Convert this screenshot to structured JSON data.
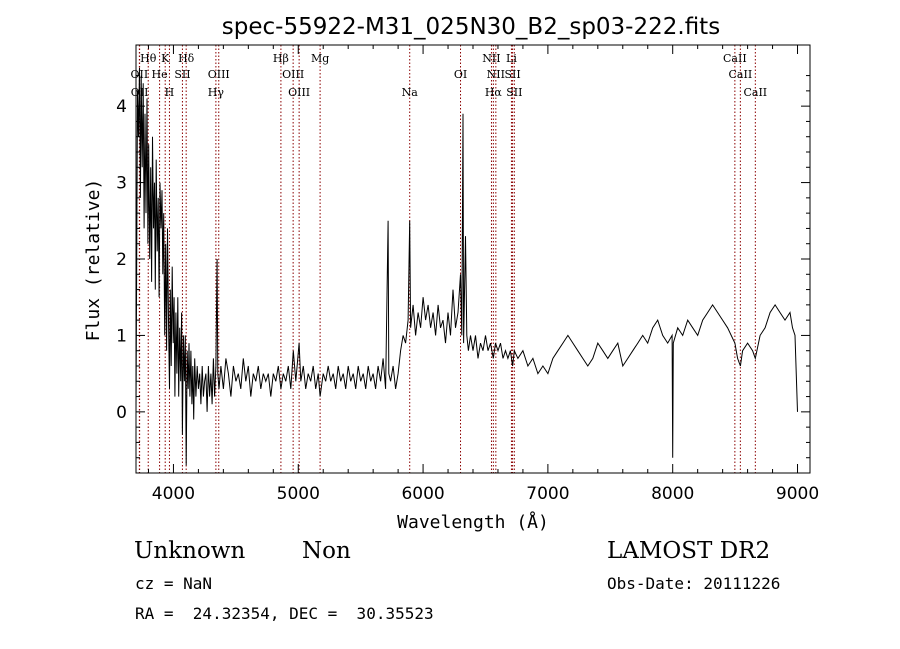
{
  "chart_data": {
    "type": "line",
    "title": "spec-55922-M31_025N30_B2_sp03-222.fits",
    "xlabel": "Wavelength (Å)",
    "ylabel": "Flux (relative)",
    "xlim": [
      3700,
      9100
    ],
    "ylim": [
      -0.8,
      4.8
    ],
    "xticks": [
      4000,
      5000,
      6000,
      7000,
      8000,
      9000
    ],
    "yticks": [
      0,
      1,
      2,
      3,
      4
    ],
    "grid": false,
    "line_color": "#000000",
    "marker_color": "#8b0000",
    "series": [
      {
        "points": [
          [
            3700,
            0.0
          ],
          [
            3712,
            4.2
          ],
          [
            3720,
            3.6
          ],
          [
            3728,
            4.5
          ],
          [
            3735,
            2.8
          ],
          [
            3742,
            4.4
          ],
          [
            3750,
            3.2
          ],
          [
            3758,
            4.3
          ],
          [
            3765,
            2.4
          ],
          [
            3772,
            3.9
          ],
          [
            3780,
            2.6
          ],
          [
            3788,
            4.1
          ],
          [
            3795,
            2.2
          ],
          [
            3802,
            3.5
          ],
          [
            3810,
            2.0
          ],
          [
            3818,
            3.2
          ],
          [
            3825,
            1.7
          ],
          [
            3832,
            3.6
          ],
          [
            3840,
            2.4
          ],
          [
            3848,
            3.0
          ],
          [
            3855,
            1.6
          ],
          [
            3862,
            3.3
          ],
          [
            3870,
            2.1
          ],
          [
            3878,
            2.8
          ],
          [
            3885,
            1.5
          ],
          [
            3892,
            3.0
          ],
          [
            3900,
            2.4
          ],
          [
            3908,
            2.9
          ],
          [
            3915,
            1.8
          ],
          [
            3922,
            2.6
          ],
          [
            3930,
            1.0
          ],
          [
            3938,
            2.2
          ],
          [
            3945,
            0.8
          ],
          [
            3952,
            2.4
          ],
          [
            3960,
            1.2
          ],
          [
            3968,
            0.3
          ],
          [
            3975,
            1.6
          ],
          [
            3982,
            0.6
          ],
          [
            3990,
            1.9
          ],
          [
            3998,
            0.9
          ],
          [
            4005,
            1.5
          ],
          [
            4012,
            0.2
          ],
          [
            4020,
            1.3
          ],
          [
            4028,
            0.5
          ],
          [
            4035,
            1.5
          ],
          [
            4042,
            0.2
          ],
          [
            4050,
            1.1
          ],
          [
            4058,
            0.4
          ],
          [
            4065,
            1.3
          ],
          [
            4072,
            -0.3
          ],
          [
            4080,
            1.0
          ],
          [
            4088,
            0.4
          ],
          [
            4095,
            1.0
          ],
          [
            4102,
            -0.7
          ],
          [
            4110,
            0.8
          ],
          [
            4118,
            0.3
          ],
          [
            4125,
            0.9
          ],
          [
            4132,
            0.2
          ],
          [
            4140,
            0.8
          ],
          [
            4148,
            0.1
          ],
          [
            4155,
            0.6
          ],
          [
            4162,
            -0.1
          ],
          [
            4170,
            0.7
          ],
          [
            4180,
            0.2
          ],
          [
            4190,
            0.6
          ],
          [
            4200,
            0.3
          ],
          [
            4210,
            0.5
          ],
          [
            4220,
            0.1
          ],
          [
            4230,
            0.6
          ],
          [
            4240,
            0.2
          ],
          [
            4250,
            0.4
          ],
          [
            4260,
            0.5
          ],
          [
            4270,
            0.0
          ],
          [
            4280,
            0.6
          ],
          [
            4290,
            0.2
          ],
          [
            4300,
            0.5
          ],
          [
            4310,
            0.1
          ],
          [
            4320,
            0.7
          ],
          [
            4330,
            0.2
          ],
          [
            4340,
            0.6
          ],
          [
            4350,
            2.0
          ],
          [
            4355,
            0.5
          ],
          [
            4365,
            0.3
          ],
          [
            4380,
            0.6
          ],
          [
            4400,
            0.3
          ],
          [
            4420,
            0.7
          ],
          [
            4440,
            0.5
          ],
          [
            4460,
            0.2
          ],
          [
            4480,
            0.6
          ],
          [
            4500,
            0.4
          ],
          [
            4520,
            0.5
          ],
          [
            4540,
            0.3
          ],
          [
            4560,
            0.7
          ],
          [
            4580,
            0.4
          ],
          [
            4600,
            0.6
          ],
          [
            4620,
            0.2
          ],
          [
            4640,
            0.5
          ],
          [
            4660,
            0.4
          ],
          [
            4680,
            0.6
          ],
          [
            4700,
            0.3
          ],
          [
            4720,
            0.5
          ],
          [
            4740,
            0.4
          ],
          [
            4760,
            0.5
          ],
          [
            4780,
            0.2
          ],
          [
            4800,
            0.5
          ],
          [
            4820,
            0.4
          ],
          [
            4840,
            0.6
          ],
          [
            4861,
            0.3
          ],
          [
            4880,
            0.5
          ],
          [
            4900,
            0.4
          ],
          [
            4920,
            0.6
          ],
          [
            4940,
            0.3
          ],
          [
            4960,
            0.8
          ],
          [
            4980,
            0.4
          ],
          [
            5007,
            0.9
          ],
          [
            5020,
            0.4
          ],
          [
            5040,
            0.6
          ],
          [
            5060,
            0.3
          ],
          [
            5080,
            0.5
          ],
          [
            5100,
            0.4
          ],
          [
            5120,
            0.6
          ],
          [
            5140,
            0.3
          ],
          [
            5160,
            0.5
          ],
          [
            5175,
            0.2
          ],
          [
            5200,
            0.5
          ],
          [
            5220,
            0.4
          ],
          [
            5240,
            0.6
          ],
          [
            5260,
            0.4
          ],
          [
            5280,
            0.5
          ],
          [
            5300,
            0.3
          ],
          [
            5320,
            0.6
          ],
          [
            5340,
            0.4
          ],
          [
            5360,
            0.5
          ],
          [
            5380,
            0.3
          ],
          [
            5400,
            0.6
          ],
          [
            5420,
            0.4
          ],
          [
            5440,
            0.5
          ],
          [
            5460,
            0.3
          ],
          [
            5480,
            0.6
          ],
          [
            5500,
            0.4
          ],
          [
            5520,
            0.5
          ],
          [
            5540,
            0.3
          ],
          [
            5560,
            0.6
          ],
          [
            5580,
            0.4
          ],
          [
            5600,
            0.5
          ],
          [
            5620,
            0.3
          ],
          [
            5640,
            0.6
          ],
          [
            5660,
            0.4
          ],
          [
            5680,
            0.7
          ],
          [
            5700,
            0.3
          ],
          [
            5720,
            2.5
          ],
          [
            5725,
            0.5
          ],
          [
            5740,
            0.4
          ],
          [
            5760,
            0.6
          ],
          [
            5780,
            0.3
          ],
          [
            5800,
            0.5
          ],
          [
            5820,
            0.8
          ],
          [
            5840,
            1.0
          ],
          [
            5860,
            0.9
          ],
          [
            5880,
            1.2
          ],
          [
            5893,
            2.5
          ],
          [
            5900,
            1.1
          ],
          [
            5920,
            1.4
          ],
          [
            5940,
            1.0
          ],
          [
            5960,
            1.3
          ],
          [
            5980,
            1.1
          ],
          [
            6000,
            1.5
          ],
          [
            6020,
            1.2
          ],
          [
            6040,
            1.4
          ],
          [
            6060,
            1.1
          ],
          [
            6080,
            1.3
          ],
          [
            6100,
            1.0
          ],
          [
            6120,
            1.4
          ],
          [
            6140,
            1.1
          ],
          [
            6160,
            1.2
          ],
          [
            6180,
            0.9
          ],
          [
            6200,
            1.3
          ],
          [
            6220,
            1.0
          ],
          [
            6240,
            1.6
          ],
          [
            6260,
            1.1
          ],
          [
            6280,
            1.3
          ],
          [
            6300,
            1.8
          ],
          [
            6310,
            1.0
          ],
          [
            6320,
            3.9
          ],
          [
            6325,
            0.9
          ],
          [
            6340,
            2.3
          ],
          [
            6350,
            1.0
          ],
          [
            6363,
            0.8
          ],
          [
            6380,
            1.0
          ],
          [
            6400,
            0.8
          ],
          [
            6420,
            1.0
          ],
          [
            6440,
            0.7
          ],
          [
            6460,
            0.9
          ],
          [
            6480,
            0.8
          ],
          [
            6500,
            1.0
          ],
          [
            6520,
            0.8
          ],
          [
            6540,
            0.9
          ],
          [
            6563,
            0.7
          ],
          [
            6580,
            0.9
          ],
          [
            6600,
            0.8
          ],
          [
            6620,
            0.9
          ],
          [
            6640,
            0.7
          ],
          [
            6660,
            0.8
          ],
          [
            6680,
            0.7
          ],
          [
            6700,
            0.8
          ],
          [
            6717,
            0.6
          ],
          [
            6731,
            0.8
          ],
          [
            6760,
            0.7
          ],
          [
            6800,
            0.8
          ],
          [
            6840,
            0.6
          ],
          [
            6880,
            0.7
          ],
          [
            6920,
            0.5
          ],
          [
            6960,
            0.6
          ],
          [
            7000,
            0.5
          ],
          [
            7040,
            0.7
          ],
          [
            7080,
            0.8
          ],
          [
            7120,
            0.9
          ],
          [
            7160,
            1.0
          ],
          [
            7200,
            0.9
          ],
          [
            7240,
            0.8
          ],
          [
            7280,
            0.7
          ],
          [
            7320,
            0.6
          ],
          [
            7360,
            0.7
          ],
          [
            7400,
            0.9
          ],
          [
            7440,
            0.8
          ],
          [
            7480,
            0.7
          ],
          [
            7520,
            0.8
          ],
          [
            7560,
            0.9
          ],
          [
            7600,
            0.6
          ],
          [
            7640,
            0.7
          ],
          [
            7680,
            0.8
          ],
          [
            7720,
            0.9
          ],
          [
            7760,
            1.0
          ],
          [
            7800,
            0.9
          ],
          [
            7840,
            1.1
          ],
          [
            7880,
            1.2
          ],
          [
            7920,
            1.0
          ],
          [
            7960,
            0.9
          ],
          [
            7995,
            1.0
          ],
          [
            8000,
            -0.6
          ],
          [
            8005,
            0.9
          ],
          [
            8040,
            1.1
          ],
          [
            8080,
            1.0
          ],
          [
            8120,
            1.2
          ],
          [
            8160,
            1.1
          ],
          [
            8200,
            1.0
          ],
          [
            8240,
            1.2
          ],
          [
            8280,
            1.3
          ],
          [
            8320,
            1.4
          ],
          [
            8360,
            1.3
          ],
          [
            8400,
            1.2
          ],
          [
            8440,
            1.1
          ],
          [
            8498,
            0.9
          ],
          [
            8520,
            0.7
          ],
          [
            8542,
            0.6
          ],
          [
            8560,
            0.8
          ],
          [
            8600,
            0.9
          ],
          [
            8640,
            0.8
          ],
          [
            8662,
            0.7
          ],
          [
            8700,
            1.0
          ],
          [
            8740,
            1.1
          ],
          [
            8780,
            1.3
          ],
          [
            8820,
            1.4
          ],
          [
            8860,
            1.3
          ],
          [
            8900,
            1.2
          ],
          [
            8940,
            1.3
          ],
          [
            8960,
            1.1
          ],
          [
            8980,
            1.0
          ],
          [
            9000,
            0.0
          ]
        ]
      }
    ],
    "line_markers": [
      {
        "label": "Hθ",
        "wavelength": 3798,
        "tier": 1
      },
      {
        "label": "K",
        "wavelength": 3934,
        "tier": 1
      },
      {
        "label": "Hδ",
        "wavelength": 4102,
        "tier": 1
      },
      {
        "label": "Hβ",
        "wavelength": 4861,
        "tier": 1
      },
      {
        "label": "Mg",
        "wavelength": 5175,
        "tier": 1
      },
      {
        "label": "NII",
        "wavelength": 6548,
        "tier": 1
      },
      {
        "label": "Li",
        "wavelength": 6708,
        "tier": 1
      },
      {
        "label": "CaII",
        "wavelength": 8498,
        "tier": 1
      },
      {
        "label": "OII",
        "wavelength": 3727,
        "tier": 2
      },
      {
        "label": "He",
        "wavelength": 3889,
        "tier": 2
      },
      {
        "label": "SII",
        "wavelength": 4072,
        "tier": 2
      },
      {
        "label": "OIII",
        "wavelength": 4363,
        "tier": 2
      },
      {
        "label": "OIII",
        "wavelength": 4959,
        "tier": 2
      },
      {
        "label": "OI",
        "wavelength": 6300,
        "tier": 2
      },
      {
        "label": "NII",
        "wavelength": 6583,
        "tier": 2
      },
      {
        "label": "SII",
        "wavelength": 6717,
        "tier": 2
      },
      {
        "label": "CaII",
        "wavelength": 8542,
        "tier": 2
      },
      {
        "label": "OII",
        "wavelength": 3729,
        "tier": 3
      },
      {
        "label": "H",
        "wavelength": 3968,
        "tier": 3
      },
      {
        "label": "Hγ",
        "wavelength": 4340,
        "tier": 3
      },
      {
        "label": "OIII",
        "wavelength": 5007,
        "tier": 3
      },
      {
        "label": "Na",
        "wavelength": 5893,
        "tier": 3
      },
      {
        "label": "Hα",
        "wavelength": 6563,
        "tier": 3
      },
      {
        "label": "SII",
        "wavelength": 6731,
        "tier": 3
      },
      {
        "label": "CaII",
        "wavelength": 8662,
        "tier": 3
      }
    ]
  },
  "info": {
    "class": "Unknown",
    "subclass": "Non",
    "survey": "LAMOST DR2",
    "redshift": "cz = NaN",
    "obs_date": "Obs-Date: 20111226",
    "coords": "RA =  24.32354, DEC =  30.35523"
  }
}
